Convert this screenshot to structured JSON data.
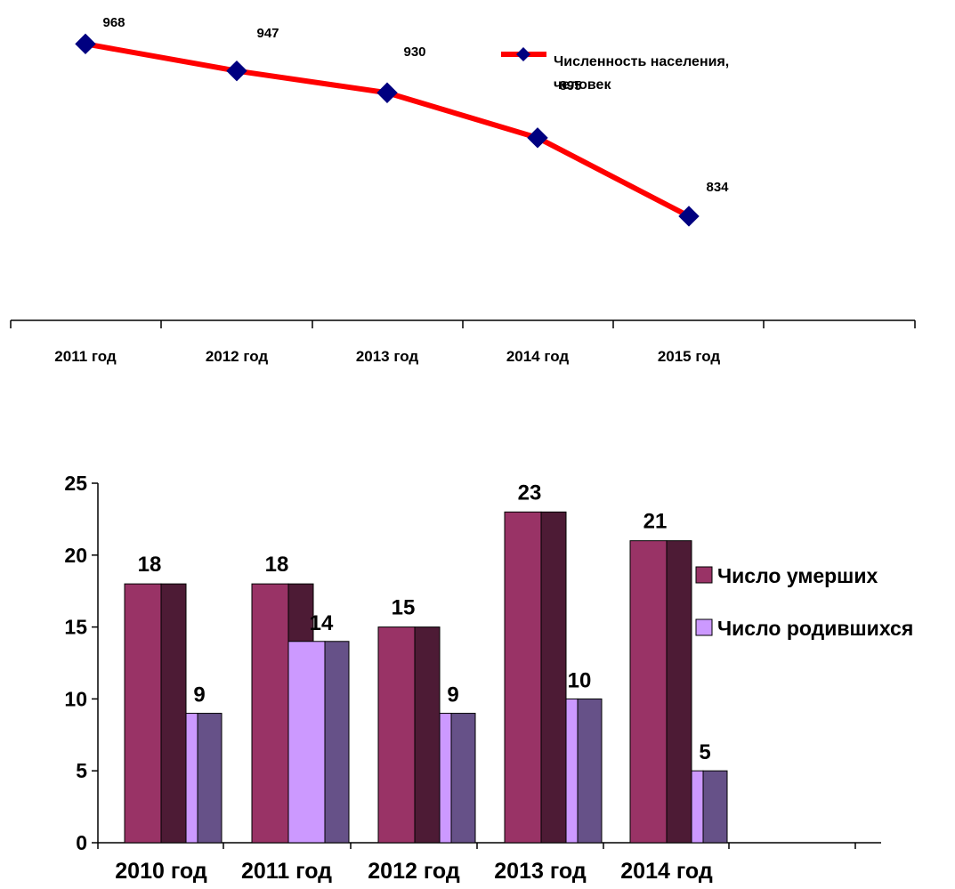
{
  "chart_data": [
    {
      "type": "line",
      "categories": [
        "2011 год",
        "2012 год",
        "2013 год",
        "2014 год",
        "2015 год"
      ],
      "series": [
        {
          "name": "Численность населения, человек",
          "values": [
            968,
            947,
            930,
            895,
            834
          ],
          "color": "#ff0000",
          "marker_color": "#000080"
        }
      ],
      "data_labels": [
        "968",
        "947",
        "930",
        "895",
        "834"
      ],
      "legend": {
        "label": "Численность населения, человек",
        "position": "right"
      },
      "ylim": [
        780,
        980
      ],
      "grid": false
    },
    {
      "type": "bar",
      "categories": [
        "2010 год",
        "2011 год",
        "2012 год",
        "2013 год",
        "2014 год"
      ],
      "series": [
        {
          "name": "Число умерших",
          "values": [
            18,
            18,
            15,
            23,
            21
          ],
          "color": "#993366",
          "side_color": "#4d1b35"
        },
        {
          "name": "Число родившихся",
          "values": [
            9,
            14,
            9,
            10,
            5
          ],
          "color": "#cc99ff",
          "side_color": "#665188"
        }
      ],
      "ylim": [
        0,
        25
      ],
      "yticks": [
        "0",
        "5",
        "10",
        "15",
        "20",
        "25"
      ],
      "legend": {
        "labels": [
          "Число умерших",
          "Число родившихся"
        ],
        "position": "right"
      },
      "grid": false
    }
  ]
}
